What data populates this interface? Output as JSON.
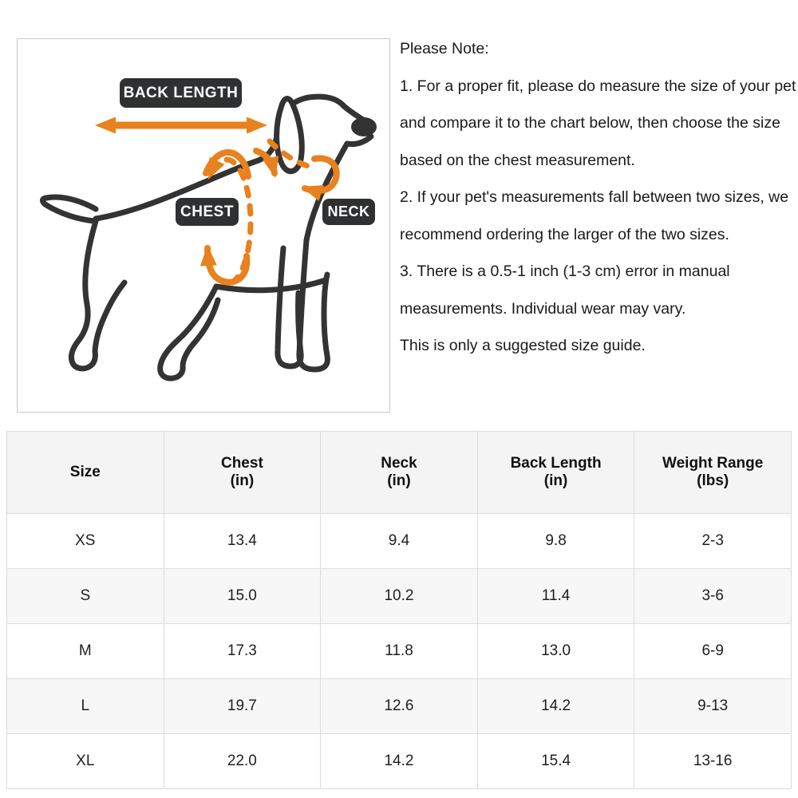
{
  "diagram": {
    "labels": {
      "back_length": "BACK LENGTH",
      "chest": "CHEST",
      "neck": "NECK"
    }
  },
  "notes": {
    "title": "Please Note:",
    "items": [
      "1. For a proper fit, please do measure the size of your pet and compare it to the chart below, then choose the size based on the chest measurement.",
      "2. If your pet's measurements fall between two sizes, we recommend ordering the larger of the two sizes.",
      "3. There is a 0.5-1 inch (1-3 cm) error in manual measurements. Individual wear may vary.",
      "This is only a suggested size guide."
    ]
  },
  "table": {
    "columns": [
      {
        "label": "Size",
        "unit": ""
      },
      {
        "label": "Chest",
        "unit": "(in)"
      },
      {
        "label": "Neck",
        "unit": "(in)"
      },
      {
        "label": "Back Length",
        "unit": "(in)"
      },
      {
        "label": "Weight Range",
        "unit": "(lbs)"
      }
    ],
    "rows": [
      {
        "size": "XS",
        "chest": "13.4",
        "neck": "9.4",
        "back_length": "9.8",
        "weight_range": "2-3"
      },
      {
        "size": "S",
        "chest": "15.0",
        "neck": "10.2",
        "back_length": "11.4",
        "weight_range": "3-6"
      },
      {
        "size": "M",
        "chest": "17.3",
        "neck": "11.8",
        "back_length": "13.0",
        "weight_range": "6-9"
      },
      {
        "size": "L",
        "chest": "19.7",
        "neck": "12.6",
        "back_length": "14.2",
        "weight_range": "9-13"
      },
      {
        "size": "XL",
        "chest": "22.0",
        "neck": "14.2",
        "back_length": "15.4",
        "weight_range": "13-16"
      }
    ]
  },
  "colors": {
    "accent": "#E8811E",
    "outline": "#333333",
    "label_bg": "#2F3031",
    "label_text": "#FFFFFF",
    "table_header_bg": "#F4F4F4",
    "table_alt_row_bg": "#F7F7F7",
    "table_border": "#DCDCDC",
    "text": "#1A1A1A"
  }
}
